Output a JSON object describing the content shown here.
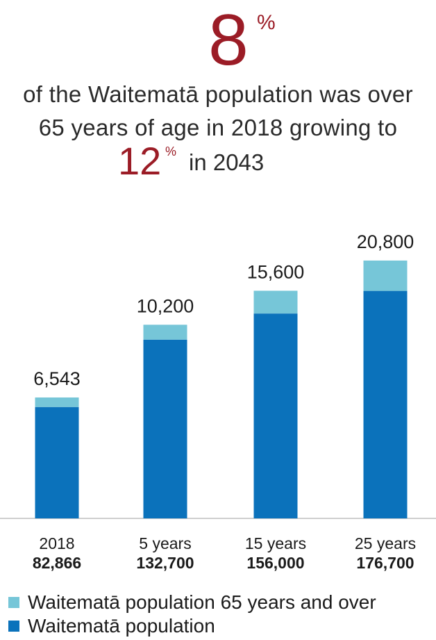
{
  "headline": {
    "big_value": "8",
    "big_unit": "%",
    "line1": "of the Waitematā population was over",
    "line2": "65 years of age in 2018 growing to",
    "small_value": "12",
    "small_unit": "%",
    "line3": "in 2043"
  },
  "colors": {
    "accent": "#9b1c26",
    "over65": "#76c6d8",
    "population": "#0b72bb",
    "axis": "#bfbfbf"
  },
  "chart_data": {
    "type": "bar",
    "stacked": true,
    "categories": [
      "2018",
      "5 years",
      "15 years",
      "25 years"
    ],
    "category_totals": [
      "82,866",
      "132,700",
      "156,000",
      "176,700"
    ],
    "series": [
      {
        "name": "Waitematā population",
        "values": [
          82866,
          132700,
          156000,
          176700
        ]
      },
      {
        "name": "Waitematā population 65 years and over",
        "values": [
          6543,
          10200,
          15600,
          20800
        ]
      }
    ],
    "data_labels": [
      "6,543",
      "10,200",
      "15,600",
      "20,800"
    ],
    "ylim": [
      0,
      200000
    ],
    "grid": false,
    "legend_position": "bottom-left"
  },
  "legend": [
    {
      "label": "Waitematā population 65 years and over",
      "color_key": "over65"
    },
    {
      "label": "Waitematā population",
      "color_key": "population"
    }
  ]
}
